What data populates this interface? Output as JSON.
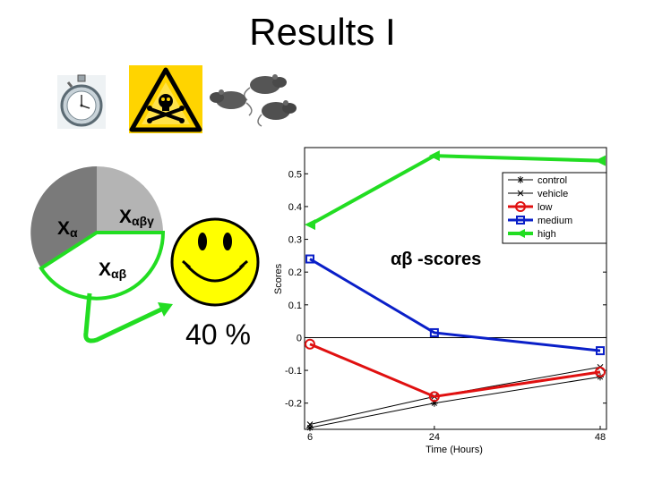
{
  "slide": {
    "title": "Results I",
    "percent_label": "40 %"
  },
  "icons": [
    "stopwatch-icon",
    "biohazard-warning-icon",
    "rats-icon",
    "smiley-face-icon"
  ],
  "colors": {
    "pie_dark": "#7a7a7a",
    "pie_light": "#b4b4b4",
    "accent_green": "#22dd22",
    "smiley_yellow": "#ffff00",
    "control": "#000000",
    "vehicle": "#000000",
    "low": "#e01010",
    "medium": "#0a1fc8",
    "high": "#22dd22"
  },
  "pie": {
    "labels": [
      {
        "main": "X",
        "sub": "α"
      },
      {
        "main": "X",
        "sub": "αβγ"
      },
      {
        "main": "X",
        "sub": "αβ"
      }
    ]
  },
  "chart_data": {
    "type": "line",
    "title": "",
    "annotation": "αβ -scores",
    "xlabel": "Time (Hours)",
    "ylabel": "Scores",
    "x": [
      6,
      24,
      48
    ],
    "x_tick_labels": [
      "6",
      "24",
      "48"
    ],
    "ylim": [
      -0.28,
      0.58
    ],
    "y_ticks": [
      -0.2,
      -0.1,
      0,
      0.1,
      0.2,
      0.3,
      0.4,
      0.5
    ],
    "y_tick_labels": [
      "-0.2",
      "-0.1",
      "0",
      "0.1",
      "0.2",
      "0.3",
      "0.4",
      "0.5"
    ],
    "grid": false,
    "zero_line": true,
    "legend_position": "top-right",
    "series": [
      {
        "name": "control",
        "values": [
          -0.275,
          -0.2,
          -0.12
        ],
        "color": "#000000",
        "marker": "star"
      },
      {
        "name": "vehicle",
        "values": [
          -0.265,
          -0.18,
          -0.09
        ],
        "color": "#000000",
        "marker": "x"
      },
      {
        "name": "low",
        "values": [
          -0.02,
          -0.18,
          -0.105
        ],
        "color": "#e01010",
        "marker": "circle"
      },
      {
        "name": "medium",
        "values": [
          0.24,
          0.015,
          -0.04
        ],
        "color": "#0a1fc8",
        "marker": "square"
      },
      {
        "name": "high",
        "values": [
          0.345,
          0.555,
          0.54
        ],
        "color": "#22dd22",
        "marker": "triangle-left"
      }
    ]
  }
}
